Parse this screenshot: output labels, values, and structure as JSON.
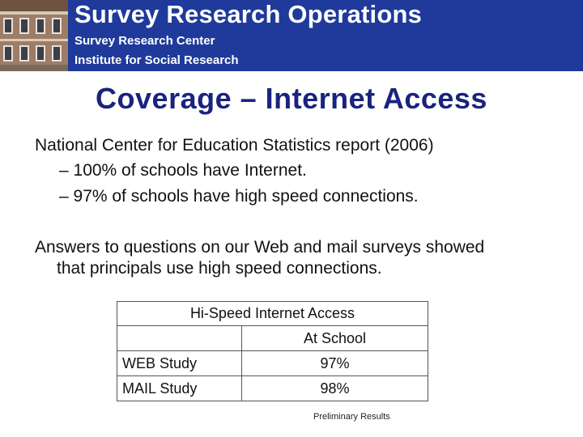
{
  "banner": {
    "title": "Survey Research Operations",
    "subtitle1": "Survey Research Center",
    "subtitle2": "Institute for Social Research",
    "background_color": "#1f3a9a"
  },
  "slide": {
    "title": "Coverage – Internet Access",
    "paragraph1": "National Center for Education Statistics report (2006)",
    "bullets": [
      "– 100% of schools have Internet.",
      "– 97% of schools have high speed connections."
    ],
    "paragraph2_line1": "Answers to questions on our Web and mail surveys showed",
    "paragraph2_line2": "that principals use high speed connections."
  },
  "table": {
    "caption": "Hi-Speed Internet Access",
    "column_header": "At School",
    "rows": [
      {
        "label": "WEB Study",
        "value": "97%"
      },
      {
        "label": "MAIL Study",
        "value": "98%"
      }
    ]
  },
  "footnote": "Preliminary Results",
  "colors": {
    "title": "#1a237e",
    "body_text": "#111111"
  }
}
